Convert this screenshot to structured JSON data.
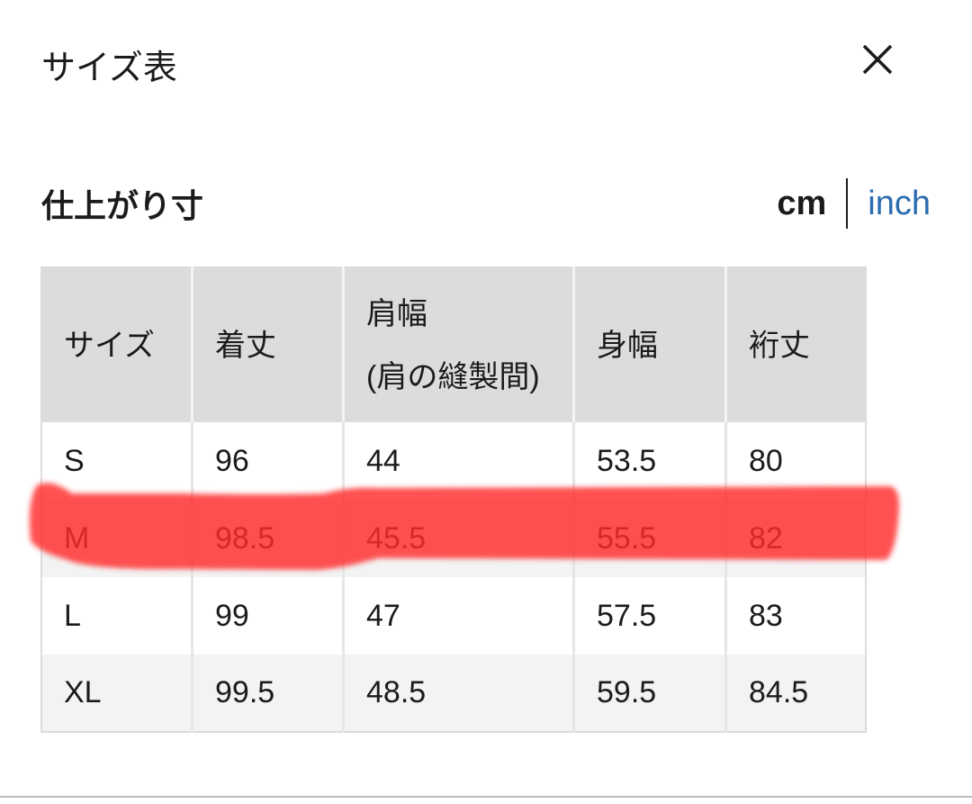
{
  "header": {
    "title": "サイズ表",
    "close_icon": "close-icon"
  },
  "section": {
    "title": "仕上がり寸",
    "units": {
      "cm": "cm",
      "inch": "inch",
      "selected": "cm"
    }
  },
  "table": {
    "headers": [
      "サイズ",
      "着丈",
      "肩幅",
      "身幅",
      "裄丈"
    ],
    "header_sub": "(肩の縫製間)",
    "rows": [
      [
        "S",
        "96",
        "44",
        "53.5",
        "80"
      ],
      [
        "M",
        "98.5",
        "45.5",
        "55.5",
        "82"
      ],
      [
        "L",
        "99",
        "47",
        "57.5",
        "83"
      ],
      [
        "XL",
        "99.5",
        "48.5",
        "59.5",
        "84.5"
      ]
    ],
    "highlighted_row": "M",
    "highlight_color": "#ff2a2a"
  }
}
